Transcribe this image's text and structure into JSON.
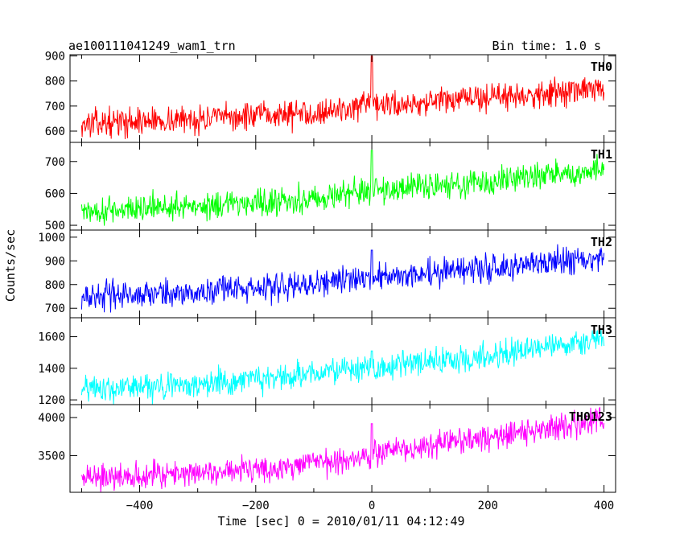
{
  "chart_data": {
    "type": "line",
    "title": "ae100111041249_wam1_trn",
    "subtitle": "Bin time: 1.0 s",
    "xlabel": "Time [sec] 0 = 2010/01/11 04:12:49",
    "ylabel": "Counts/sec",
    "xlim": [
      -520,
      420
    ],
    "x_ticks": [
      -400,
      -200,
      0,
      200,
      400
    ],
    "x_tick_labels": [
      "−400",
      "−200",
      "0",
      "200",
      "400"
    ],
    "series": [
      {
        "name": "TH0",
        "color": "#ff0000",
        "ylim": [
          555,
          905
        ],
        "y_ticks": [
          600,
          700,
          800,
          900
        ],
        "y_tick_labels": [
          "600",
          "700",
          "800",
          "900"
        ],
        "x": [
          -500,
          -400,
          -300,
          -200,
          -100,
          0,
          100,
          200,
          300,
          400
        ],
        "values": [
          628,
          640,
          648,
          660,
          675,
          700,
          715,
          735,
          752,
          768
        ],
        "spike": {
          "x": 0,
          "y": 900
        }
      },
      {
        "name": "TH1",
        "color": "#00ff00",
        "ylim": [
          485,
          760
        ],
        "y_ticks": [
          500,
          600,
          700
        ],
        "y_tick_labels": [
          "500",
          "600",
          "700"
        ],
        "x": [
          -500,
          -400,
          -300,
          -200,
          -100,
          0,
          100,
          200,
          300,
          400
        ],
        "values": [
          545,
          553,
          562,
          572,
          585,
          610,
          622,
          637,
          655,
          672
        ],
        "spike": {
          "x": 0,
          "y": 735
        }
      },
      {
        "name": "TH2",
        "color": "#0000ff",
        "ylim": [
          660,
          1030
        ],
        "y_ticks": [
          700,
          800,
          900,
          1000
        ],
        "y_tick_labels": [
          "700",
          "800",
          "900",
          "1000"
        ],
        "x": [
          -500,
          -400,
          -300,
          -200,
          -100,
          0,
          100,
          200,
          300,
          400
        ],
        "values": [
          750,
          760,
          770,
          785,
          800,
          830,
          850,
          870,
          890,
          915
        ],
        "spike": {
          "x": 0,
          "y": 945
        }
      },
      {
        "name": "TH3",
        "color": "#00ffff",
        "ylim": [
          1170,
          1720
        ],
        "y_ticks": [
          1200,
          1400,
          1600
        ],
        "y_tick_labels": [
          "1200",
          "1400",
          "1600"
        ],
        "x": [
          -500,
          -400,
          -300,
          -200,
          -100,
          0,
          100,
          200,
          300,
          400
        ],
        "values": [
          1265,
          1285,
          1305,
          1330,
          1360,
          1400,
          1440,
          1480,
          1530,
          1575
        ],
        "spike": {
          "x": 0,
          "y": 1510
        }
      },
      {
        "name": "TH0123",
        "color": "#ff00ff",
        "ylim": [
          3020,
          4170
        ],
        "y_ticks": [
          3500,
          4000
        ],
        "y_tick_labels": [
          "3500",
          "4000"
        ],
        "x": [
          -500,
          -400,
          -300,
          -200,
          -100,
          0,
          100,
          200,
          300,
          400
        ],
        "values": [
          3220,
          3250,
          3275,
          3320,
          3400,
          3540,
          3640,
          3740,
          3850,
          3950
        ],
        "spike": {
          "x": 0,
          "y": 3920
        }
      }
    ]
  }
}
